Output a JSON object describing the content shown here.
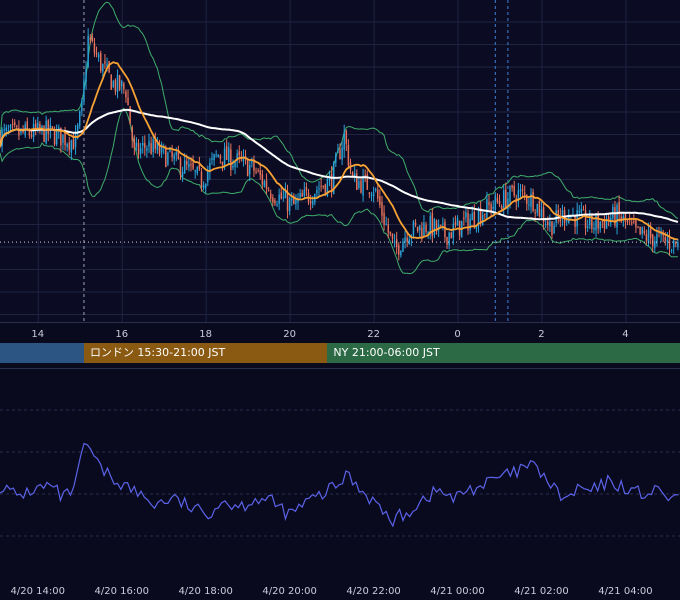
{
  "sessions": [
    {
      "label": "",
      "color": "#2d5584"
    },
    {
      "label": "ロンドン 15:30-21:00 JST",
      "color": "#8a5a12"
    },
    {
      "label": "NY 21:00-06:00 JST",
      "color": "#2b6a45"
    }
  ],
  "chart_data": [
    {
      "type": "candlestick",
      "panel": "price",
      "x_tick_labels": [
        "14",
        "16",
        "18",
        "20",
        "22",
        "0",
        "2",
        "4"
      ],
      "x_tick_hours": [
        14,
        16,
        18,
        20,
        22,
        24,
        26,
        28
      ],
      "x_range_hours": [
        13.1,
        29.3
      ],
      "y_range": [
        0,
        100
      ],
      "grid": true,
      "colors": {
        "up": "#29a3d8",
        "down": "#e8735c",
        "bb": "#3fae6a",
        "ma_fast": "#f7a233",
        "ma_slow": "#ffffff"
      },
      "close_path": [
        [
          13.1,
          58
        ],
        [
          14.2,
          59
        ],
        [
          14.9,
          56
        ],
        [
          15.05,
          66
        ],
        [
          15.2,
          88
        ],
        [
          15.35,
          84
        ],
        [
          15.5,
          80
        ],
        [
          15.8,
          74
        ],
        [
          16.1,
          72
        ],
        [
          16.3,
          52
        ],
        [
          16.6,
          55
        ],
        [
          17,
          52
        ],
        [
          17.5,
          48
        ],
        [
          17.9,
          44
        ],
        [
          18.3,
          52
        ],
        [
          18.7,
          50
        ],
        [
          19.1,
          48
        ],
        [
          19.6,
          40
        ],
        [
          20.1,
          36
        ],
        [
          20.7,
          42
        ],
        [
          21.0,
          44
        ],
        [
          21.3,
          58
        ],
        [
          21.5,
          44
        ],
        [
          22.0,
          42
        ],
        [
          22.5,
          22
        ],
        [
          22.8,
          28
        ],
        [
          23.3,
          30
        ],
        [
          23.7,
          27
        ],
        [
          24.2,
          31
        ],
        [
          24.8,
          36
        ],
        [
          25.4,
          40
        ],
        [
          25.8,
          38
        ],
        [
          26.2,
          30
        ],
        [
          26.6,
          34
        ],
        [
          27.2,
          30
        ],
        [
          27.8,
          33
        ],
        [
          28.3,
          27
        ],
        [
          28.7,
          26
        ],
        [
          29.3,
          24
        ]
      ],
      "vertical_markers_hours": [
        15.1,
        24.9,
        25.2
      ]
    },
    {
      "type": "line",
      "panel": "oscillator",
      "color": "#5b63e8",
      "y_range": [
        0,
        100
      ],
      "path": [
        [
          13.1,
          44
        ],
        [
          13.5,
          39
        ],
        [
          13.9,
          42
        ],
        [
          14.3,
          44
        ],
        [
          14.6,
          38
        ],
        [
          14.9,
          43
        ],
        [
          15.05,
          60
        ],
        [
          15.2,
          64
        ],
        [
          15.35,
          56
        ],
        [
          15.5,
          52
        ],
        [
          15.8,
          47
        ],
        [
          16.1,
          44
        ],
        [
          16.4,
          40
        ],
        [
          16.8,
          35
        ],
        [
          17.2,
          38
        ],
        [
          17.6,
          34
        ],
        [
          18.0,
          30
        ],
        [
          18.4,
          37
        ],
        [
          18.8,
          34
        ],
        [
          19.2,
          38
        ],
        [
          19.6,
          36
        ],
        [
          20.0,
          30
        ],
        [
          20.4,
          36
        ],
        [
          20.8,
          40
        ],
        [
          21.2,
          45
        ],
        [
          21.4,
          50
        ],
        [
          21.6,
          44
        ],
        [
          22.0,
          37
        ],
        [
          22.4,
          27
        ],
        [
          22.8,
          31
        ],
        [
          23.2,
          38
        ],
        [
          23.6,
          42
        ],
        [
          23.9,
          37
        ],
        [
          24.2,
          42
        ],
        [
          24.6,
          44
        ],
        [
          25.0,
          48
        ],
        [
          25.4,
          50
        ],
        [
          25.7,
          54
        ],
        [
          26.0,
          50
        ],
        [
          26.3,
          42
        ],
        [
          26.6,
          37
        ],
        [
          26.9,
          43
        ],
        [
          27.2,
          41
        ],
        [
          27.6,
          46
        ],
        [
          28.0,
          43
        ],
        [
          28.4,
          40
        ],
        [
          28.7,
          41
        ],
        [
          29.0,
          39
        ],
        [
          29.3,
          36
        ]
      ],
      "x_tick_labels": [
        "4/20 14:00",
        "4/20 16:00",
        "4/20 18:00",
        "4/20 20:00",
        "4/20 22:00",
        "4/21 00:00",
        "4/21 02:00",
        "4/21 04:00"
      ],
      "x_tick_hours": [
        14,
        16,
        18,
        20,
        22,
        24,
        26,
        28
      ]
    }
  ]
}
